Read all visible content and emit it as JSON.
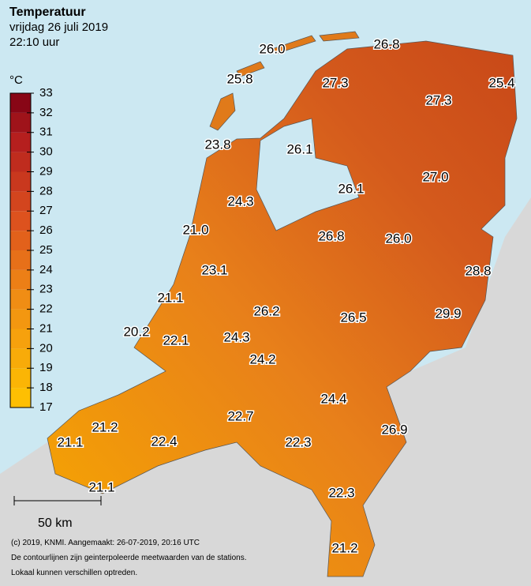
{
  "header": {
    "title": "Temperatuur",
    "date": "vrijdag 26 juli 2019",
    "time": "22:10 uur"
  },
  "legend": {
    "unit": "°C",
    "ticks": [
      17,
      18,
      19,
      20,
      21,
      22,
      23,
      24,
      25,
      26,
      27,
      28,
      29,
      30,
      31,
      32,
      33
    ]
  },
  "stations": [
    "26.0",
    "26.8",
    "25.8",
    "27.3",
    "27.3",
    "25.4",
    "23.8",
    "26.1",
    "27.0",
    "26.1",
    "24.3",
    "21.0",
    "26.8",
    "26.0",
    "23.1",
    "28.8",
    "21.1",
    "26.2",
    "26.5",
    "29.9",
    "20.2",
    "22.1",
    "24.3",
    "24.2",
    "24.4",
    "21.2",
    "22.7",
    "26.9",
    "21.1",
    "22.4",
    "22.3",
    "21.1",
    "22.3",
    "21.2"
  ],
  "scale": "50 km",
  "footer": [
    "(c) 2019, KNMI. Aangemaakt: 26-07-2019, 20:16 UTC",
    "De contourlijnen zijn geinterpoleerde meetwaarden van de stations.",
    "Lokaal kunnen verschillen optreden."
  ]
}
